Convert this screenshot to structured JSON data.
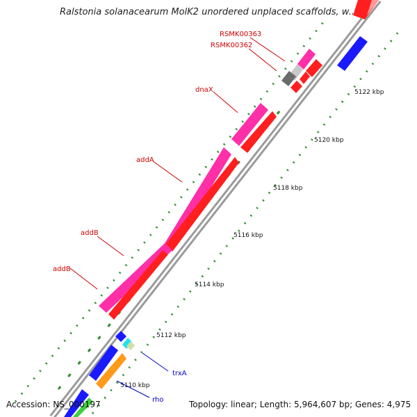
{
  "title": "Ralstonia solanacearum MolK2 unordered unplaced scaffolds, w...",
  "footer": {
    "accession": "Accession: NS_000197",
    "topology": "Topology: linear; Length: 5,964,607 bp; Genes: 4,975"
  },
  "colors": {
    "forward_gene": "#ff1f1f",
    "reverse_gene": "#ff2fa8",
    "backbone": "#8c8c8c",
    "tick": "#1f7a1f",
    "forward_label": "#cc0000",
    "reverse_label": "#0000cc"
  },
  "scale_labels": [
    "5122 kbp",
    "5120 kbp",
    "5118 kbp",
    "5116 kbp",
    "5114 kbp",
    "5112 kbp",
    "5110 kbp"
  ],
  "gene_labels": [
    "RSMK00363",
    "RSMK00362",
    "dnaX",
    "addA",
    "addB",
    "addB",
    "trxA",
    "rho"
  ]
}
